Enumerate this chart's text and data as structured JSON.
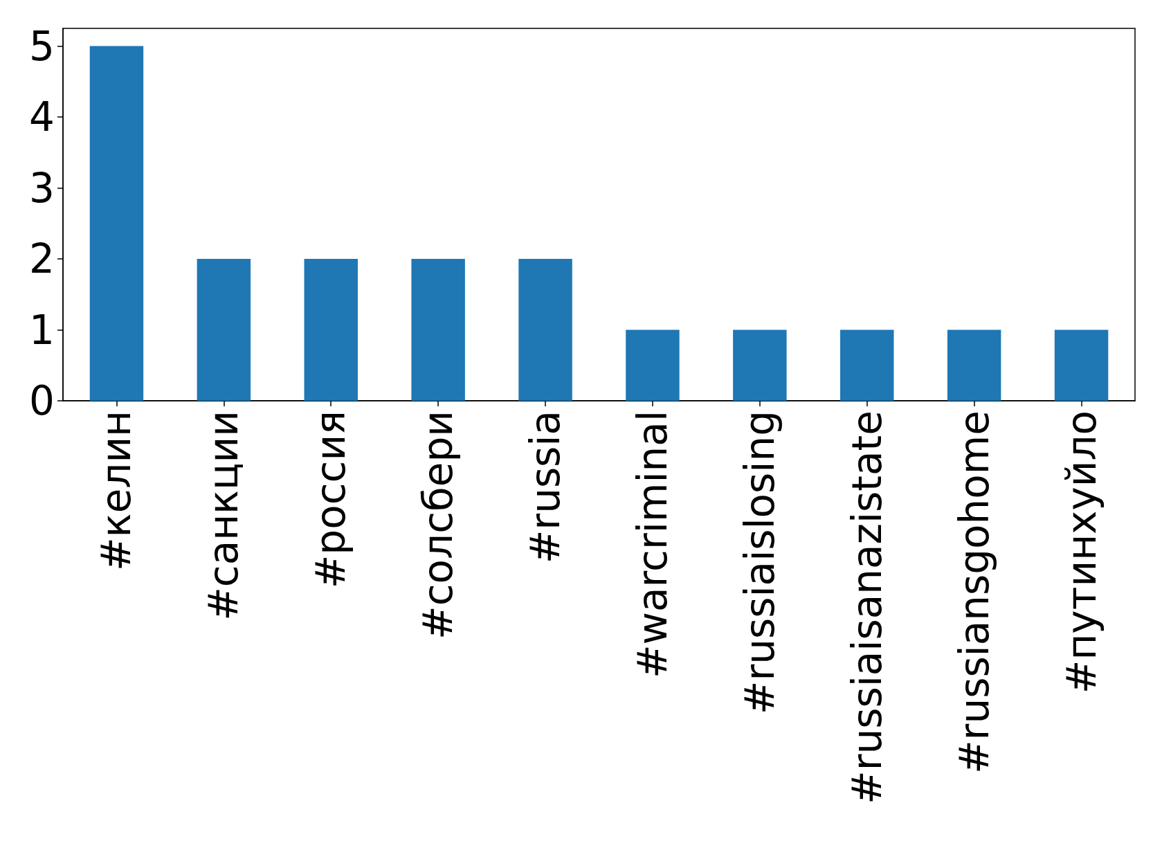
{
  "chart_data": {
    "type": "bar",
    "categories": [
      "#келин",
      "#санкции",
      "#россия",
      "#солсбери",
      "#russia",
      "#warcriminal",
      "#russiaislosing",
      "#russiaisanazistate",
      "#russiansgohome",
      "#путинхуйло"
    ],
    "values": [
      5,
      2,
      2,
      2,
      2,
      1,
      1,
      1,
      1,
      1
    ],
    "color": "#1f77b4",
    "ylim": [
      0,
      5.25
    ],
    "yticks": [
      0,
      1,
      2,
      3,
      4,
      5
    ],
    "grid": false
  }
}
